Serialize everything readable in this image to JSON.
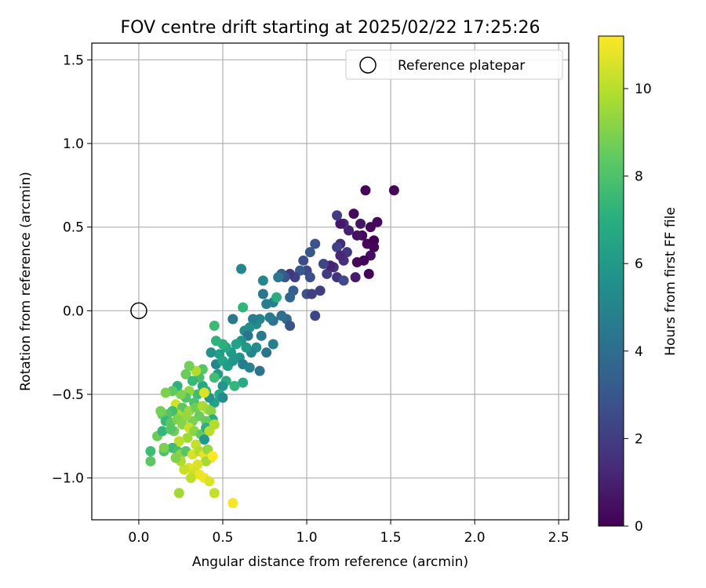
{
  "chart_data": {
    "type": "scatter",
    "title": "FOV centre drift starting at 2025/02/22 17:25:26",
    "xlabel": "Angular distance from reference (arcmin)",
    "ylabel": "Rotation from reference (arcmin)",
    "xlim": [
      -0.28,
      2.56
    ],
    "ylim": [
      -1.25,
      1.6
    ],
    "xticks": [
      0.0,
      0.5,
      1.0,
      1.5,
      2.0,
      2.5
    ],
    "xtick_labels": [
      "0.0",
      "0.5",
      "1.0",
      "1.5",
      "2.0",
      "2.5"
    ],
    "yticks": [
      -1.0,
      -0.5,
      0.0,
      0.5,
      1.0,
      1.5
    ],
    "ytick_labels": [
      "−1.0",
      "−0.5",
      "0.0",
      "0.5",
      "1.0",
      "1.5"
    ],
    "grid": true,
    "legend": {
      "position": "upper right",
      "entries": [
        {
          "label": "Reference platepar",
          "marker": "open-circle"
        }
      ]
    },
    "reference_point": {
      "x": 0.0,
      "y": 0.0
    },
    "colorbar": {
      "label": "Hours from first FF file",
      "colormap": "viridis",
      "range": [
        0,
        11.2
      ],
      "ticks": [
        0,
        2,
        4,
        6,
        8,
        10
      ],
      "tick_labels": [
        "0",
        "2",
        "4",
        "6",
        "8",
        "10"
      ]
    },
    "points": [
      {
        "x": 1.52,
        "y": 0.72,
        "c": 0.2
      },
      {
        "x": 1.35,
        "y": 0.72,
        "c": 0.1
      },
      {
        "x": 1.42,
        "y": 0.53,
        "c": 0.3
      },
      {
        "x": 1.38,
        "y": 0.5,
        "c": 0.2
      },
      {
        "x": 1.36,
        "y": 0.4,
        "c": 0.1
      },
      {
        "x": 1.4,
        "y": 0.42,
        "c": 0.0
      },
      {
        "x": 1.33,
        "y": 0.45,
        "c": 0.3
      },
      {
        "x": 1.3,
        "y": 0.45,
        "c": 0.5
      },
      {
        "x": 1.28,
        "y": 0.58,
        "c": 0.2
      },
      {
        "x": 1.32,
        "y": 0.52,
        "c": 0.6
      },
      {
        "x": 1.38,
        "y": 0.33,
        "c": 0.4
      },
      {
        "x": 1.34,
        "y": 0.3,
        "c": 0.1
      },
      {
        "x": 1.3,
        "y": 0.29,
        "c": 0.2
      },
      {
        "x": 1.37,
        "y": 0.22,
        "c": 0.1
      },
      {
        "x": 1.29,
        "y": 0.2,
        "c": 0.8
      },
      {
        "x": 1.4,
        "y": 0.38,
        "c": 0.2
      },
      {
        "x": 1.25,
        "y": 0.48,
        "c": 1.0
      },
      {
        "x": 1.22,
        "y": 0.52,
        "c": 1.3
      },
      {
        "x": 1.2,
        "y": 0.52,
        "c": 0.7
      },
      {
        "x": 1.18,
        "y": 0.57,
        "c": 2.0
      },
      {
        "x": 1.2,
        "y": 0.4,
        "c": 1.4
      },
      {
        "x": 1.18,
        "y": 0.38,
        "c": 2.2
      },
      {
        "x": 1.24,
        "y": 0.35,
        "c": 1.8
      },
      {
        "x": 1.22,
        "y": 0.3,
        "c": 1.5
      },
      {
        "x": 1.2,
        "y": 0.33,
        "c": 1.2
      },
      {
        "x": 1.16,
        "y": 0.26,
        "c": 1.6
      },
      {
        "x": 1.12,
        "y": 0.22,
        "c": 1.9
      },
      {
        "x": 1.14,
        "y": 0.27,
        "c": 1.1
      },
      {
        "x": 1.1,
        "y": 0.28,
        "c": 2.3
      },
      {
        "x": 1.08,
        "y": 0.12,
        "c": 2.0
      },
      {
        "x": 1.18,
        "y": 0.2,
        "c": 1.7
      },
      {
        "x": 1.22,
        "y": 0.18,
        "c": 2.5
      },
      {
        "x": 1.05,
        "y": 0.4,
        "c": 2.8
      },
      {
        "x": 1.02,
        "y": 0.35,
        "c": 3.0
      },
      {
        "x": 0.98,
        "y": 0.3,
        "c": 2.6
      },
      {
        "x": 1.0,
        "y": 0.24,
        "c": 2.4
      },
      {
        "x": 0.96,
        "y": 0.24,
        "c": 3.2
      },
      {
        "x": 0.93,
        "y": 0.2,
        "c": 2.2
      },
      {
        "x": 0.9,
        "y": 0.22,
        "c": 1.8
      },
      {
        "x": 1.02,
        "y": 0.2,
        "c": 2.7
      },
      {
        "x": 1.0,
        "y": 0.1,
        "c": 2.9
      },
      {
        "x": 1.03,
        "y": 0.1,
        "c": 2.1
      },
      {
        "x": 1.05,
        "y": -0.03,
        "c": 2.3
      },
      {
        "x": 0.92,
        "y": 0.12,
        "c": 3.4
      },
      {
        "x": 0.9,
        "y": 0.08,
        "c": 3.6
      },
      {
        "x": 0.87,
        "y": 0.2,
        "c": 2.8
      },
      {
        "x": 0.85,
        "y": 0.22,
        "c": 3.2
      },
      {
        "x": 0.83,
        "y": 0.2,
        "c": 4.5
      },
      {
        "x": 0.88,
        "y": -0.05,
        "c": 3.8
      },
      {
        "x": 0.9,
        "y": -0.09,
        "c": 2.9
      },
      {
        "x": 0.85,
        "y": -0.03,
        "c": 4.1
      },
      {
        "x": 0.8,
        "y": -0.06,
        "c": 4.2
      },
      {
        "x": 0.78,
        "y": -0.04,
        "c": 4.6
      },
      {
        "x": 0.76,
        "y": 0.04,
        "c": 4.8
      },
      {
        "x": 0.74,
        "y": 0.1,
        "c": 4.4
      },
      {
        "x": 0.74,
        "y": 0.18,
        "c": 5.2
      },
      {
        "x": 0.8,
        "y": 0.05,
        "c": 4.9
      },
      {
        "x": 0.82,
        "y": 0.08,
        "c": 6.9
      },
      {
        "x": 0.72,
        "y": -0.05,
        "c": 5.0
      },
      {
        "x": 0.7,
        "y": -0.08,
        "c": 5.3
      },
      {
        "x": 0.68,
        "y": -0.05,
        "c": 4.7
      },
      {
        "x": 0.66,
        "y": -0.1,
        "c": 5.6
      },
      {
        "x": 0.63,
        "y": -0.12,
        "c": 5.4
      },
      {
        "x": 0.65,
        "y": -0.15,
        "c": 4.3
      },
      {
        "x": 0.61,
        "y": -0.18,
        "c": 5.8
      },
      {
        "x": 0.62,
        "y": 0.02,
        "c": 7.3
      },
      {
        "x": 0.56,
        "y": -0.05,
        "c": 4.5
      },
      {
        "x": 0.61,
        "y": 0.25,
        "c": 5.2
      },
      {
        "x": 0.73,
        "y": -0.15,
        "c": 4.6
      },
      {
        "x": 0.8,
        "y": -0.2,
        "c": 4.9
      },
      {
        "x": 0.76,
        "y": -0.25,
        "c": 4.4
      },
      {
        "x": 0.7,
        "y": -0.22,
        "c": 5.5
      },
      {
        "x": 0.67,
        "y": -0.25,
        "c": 5.1
      },
      {
        "x": 0.64,
        "y": -0.22,
        "c": 6.0
      },
      {
        "x": 0.6,
        "y": -0.28,
        "c": 5.7
      },
      {
        "x": 0.58,
        "y": -0.2,
        "c": 6.4
      },
      {
        "x": 0.55,
        "y": -0.25,
        "c": 6.1
      },
      {
        "x": 0.52,
        "y": -0.22,
        "c": 6.6
      },
      {
        "x": 0.5,
        "y": -0.2,
        "c": 7.0
      },
      {
        "x": 0.48,
        "y": -0.26,
        "c": 6.3
      },
      {
        "x": 0.46,
        "y": -0.18,
        "c": 7.2
      },
      {
        "x": 0.45,
        "y": -0.09,
        "c": 7.6
      },
      {
        "x": 0.43,
        "y": -0.25,
        "c": 5.6
      },
      {
        "x": 0.46,
        "y": -0.32,
        "c": 5.2
      },
      {
        "x": 0.5,
        "y": -0.3,
        "c": 6.5
      },
      {
        "x": 0.53,
        "y": -0.33,
        "c": 6.2
      },
      {
        "x": 0.56,
        "y": -0.3,
        "c": 5.9
      },
      {
        "x": 0.62,
        "y": -0.32,
        "c": 4.7
      },
      {
        "x": 0.66,
        "y": -0.34,
        "c": 5.0
      },
      {
        "x": 0.72,
        "y": -0.36,
        "c": 4.3
      },
      {
        "x": 0.62,
        "y": -0.43,
        "c": 6.8
      },
      {
        "x": 0.57,
        "y": -0.45,
        "c": 7.4
      },
      {
        "x": 0.52,
        "y": -0.42,
        "c": 6.9
      },
      {
        "x": 0.5,
        "y": -0.45,
        "c": 5.9
      },
      {
        "x": 0.47,
        "y": -0.38,
        "c": 6.1
      },
      {
        "x": 0.45,
        "y": -0.4,
        "c": 7.8
      },
      {
        "x": 0.48,
        "y": -0.5,
        "c": 6.6
      },
      {
        "x": 0.5,
        "y": -0.52,
        "c": 5.4
      },
      {
        "x": 0.45,
        "y": -0.55,
        "c": 6.4
      },
      {
        "x": 0.42,
        "y": -0.52,
        "c": 5.8
      },
      {
        "x": 0.4,
        "y": -0.48,
        "c": 7.1
      },
      {
        "x": 0.38,
        "y": -0.45,
        "c": 6.7
      },
      {
        "x": 0.36,
        "y": -0.4,
        "c": 7.9
      },
      {
        "x": 0.38,
        "y": -0.35,
        "c": 8.2
      },
      {
        "x": 0.34,
        "y": -0.36,
        "c": 9.9
      },
      {
        "x": 0.3,
        "y": -0.33,
        "c": 8.8
      },
      {
        "x": 0.28,
        "y": -0.38,
        "c": 8.6
      },
      {
        "x": 0.32,
        "y": -0.42,
        "c": 7.5
      },
      {
        "x": 0.35,
        "y": -0.5,
        "c": 7.7
      },
      {
        "x": 0.39,
        "y": -0.49,
        "c": 10.6
      },
      {
        "x": 0.33,
        "y": -0.55,
        "c": 8.0
      },
      {
        "x": 0.3,
        "y": -0.48,
        "c": 9.3
      },
      {
        "x": 0.28,
        "y": -0.52,
        "c": 8.1
      },
      {
        "x": 0.25,
        "y": -0.5,
        "c": 9.0
      },
      {
        "x": 0.23,
        "y": -0.45,
        "c": 7.2
      },
      {
        "x": 0.2,
        "y": -0.48,
        "c": 8.4
      },
      {
        "x": 0.16,
        "y": -0.49,
        "c": 8.9
      },
      {
        "x": 0.22,
        "y": -0.56,
        "c": 10.4
      },
      {
        "x": 0.26,
        "y": -0.58,
        "c": 8.3
      },
      {
        "x": 0.3,
        "y": -0.6,
        "c": 9.5
      },
      {
        "x": 0.34,
        "y": -0.58,
        "c": 8.7
      },
      {
        "x": 0.38,
        "y": -0.57,
        "c": 9.8
      },
      {
        "x": 0.41,
        "y": -0.59,
        "c": 9.6
      },
      {
        "x": 0.43,
        "y": -0.6,
        "c": 9.2
      },
      {
        "x": 0.44,
        "y": -0.65,
        "c": 6.9
      },
      {
        "x": 0.4,
        "y": -0.66,
        "c": 8.5
      },
      {
        "x": 0.36,
        "y": -0.63,
        "c": 8.6
      },
      {
        "x": 0.32,
        "y": -0.66,
        "c": 8.9
      },
      {
        "x": 0.28,
        "y": -0.63,
        "c": 9.4
      },
      {
        "x": 0.23,
        "y": -0.62,
        "c": 9.7
      },
      {
        "x": 0.2,
        "y": -0.6,
        "c": 7.8
      },
      {
        "x": 0.17,
        "y": -0.62,
        "c": 8.1
      },
      {
        "x": 0.14,
        "y": -0.62,
        "c": 8.5
      },
      {
        "x": 0.13,
        "y": -0.6,
        "c": 8.8
      },
      {
        "x": 0.16,
        "y": -0.66,
        "c": 7.5
      },
      {
        "x": 0.19,
        "y": -0.67,
        "c": 8.3
      },
      {
        "x": 0.23,
        "y": -0.65,
        "c": 9.0
      },
      {
        "x": 0.26,
        "y": -0.68,
        "c": 9.1
      },
      {
        "x": 0.3,
        "y": -0.7,
        "c": 10.3
      },
      {
        "x": 0.33,
        "y": -0.72,
        "c": 9.2
      },
      {
        "x": 0.37,
        "y": -0.74,
        "c": 8.4
      },
      {
        "x": 0.4,
        "y": -0.7,
        "c": 7.0
      },
      {
        "x": 0.42,
        "y": -0.72,
        "c": 10.0
      },
      {
        "x": 0.39,
        "y": -0.77,
        "c": 6.0
      },
      {
        "x": 0.34,
        "y": -0.8,
        "c": 10.2
      },
      {
        "x": 0.29,
        "y": -0.76,
        "c": 9.6
      },
      {
        "x": 0.24,
        "y": -0.78,
        "c": 10.1
      },
      {
        "x": 0.21,
        "y": -0.72,
        "c": 8.7
      },
      {
        "x": 0.2,
        "y": -0.82,
        "c": 7.6
      },
      {
        "x": 0.23,
        "y": -0.84,
        "c": 7.9
      },
      {
        "x": 0.25,
        "y": -0.86,
        "c": 9.3
      },
      {
        "x": 0.28,
        "y": -0.84,
        "c": 8.2
      },
      {
        "x": 0.32,
        "y": -0.86,
        "c": 10.5
      },
      {
        "x": 0.36,
        "y": -0.84,
        "c": 9.9
      },
      {
        "x": 0.39,
        "y": -0.86,
        "c": 10.8
      },
      {
        "x": 0.41,
        "y": -0.83,
        "c": 9.4
      },
      {
        "x": 0.43,
        "y": -0.88,
        "c": 10.9
      },
      {
        "x": 0.4,
        "y": -0.9,
        "c": 9.7
      },
      {
        "x": 0.35,
        "y": -0.92,
        "c": 10.6
      },
      {
        "x": 0.3,
        "y": -0.94,
        "c": 10.7
      },
      {
        "x": 0.27,
        "y": -0.95,
        "c": 10.3
      },
      {
        "x": 0.33,
        "y": -0.97,
        "c": 10.4
      },
      {
        "x": 0.36,
        "y": -0.98,
        "c": 10.9
      },
      {
        "x": 0.39,
        "y": -1.0,
        "c": 11.0
      },
      {
        "x": 0.42,
        "y": -1.02,
        "c": 10.6
      },
      {
        "x": 0.31,
        "y": -1.0,
        "c": 10.1
      },
      {
        "x": 0.25,
        "y": -0.9,
        "c": 9.8
      },
      {
        "x": 0.22,
        "y": -0.88,
        "c": 9.0
      },
      {
        "x": 0.15,
        "y": -0.84,
        "c": 8.0
      },
      {
        "x": 0.15,
        "y": -0.82,
        "c": 8.9
      },
      {
        "x": 0.07,
        "y": -0.84,
        "c": 7.7
      },
      {
        "x": 0.07,
        "y": -0.9,
        "c": 8.3
      },
      {
        "x": 0.11,
        "y": -0.75,
        "c": 8.6
      },
      {
        "x": 0.14,
        "y": -0.72,
        "c": 7.4
      },
      {
        "x": 0.19,
        "y": -0.71,
        "c": 8.2
      },
      {
        "x": 0.24,
        "y": -1.09,
        "c": 9.6
      },
      {
        "x": 0.45,
        "y": -1.09,
        "c": 10.2
      },
      {
        "x": 0.56,
        "y": -1.15,
        "c": 11.1
      },
      {
        "x": 0.44,
        "y": -0.87,
        "c": 11.2
      },
      {
        "x": 0.45,
        "y": -0.68,
        "c": 9.9
      }
    ]
  }
}
